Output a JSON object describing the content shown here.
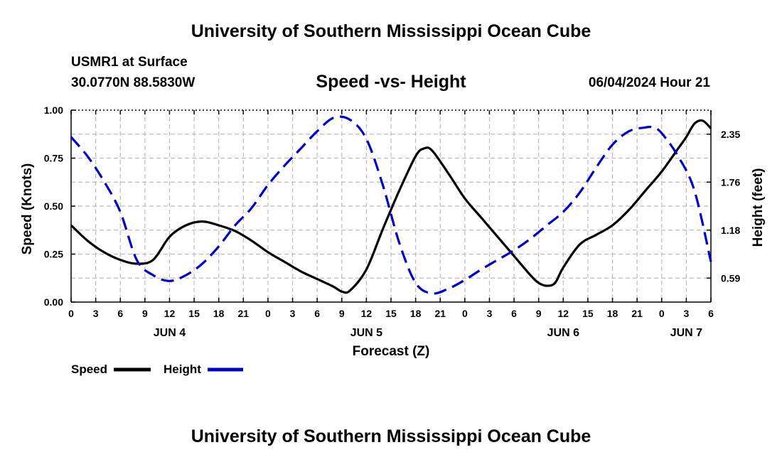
{
  "header": {
    "title": "University of Southern Mississippi Ocean Cube",
    "station": "USMR1 at Surface",
    "coords": "30.0770N  88.5830W",
    "subtitle": "Speed -vs- Height",
    "datetime": "06/04/2024 Hour 21"
  },
  "footer": {
    "title": "University of Southern Mississippi Ocean Cube"
  },
  "colors": {
    "speed": "#000000",
    "height": "#0000cc",
    "grid": "#bbbbbb"
  },
  "chart_data": {
    "type": "line",
    "title": "Speed -vs- Height",
    "xlabel": "Forecast (Z)",
    "ylabel": "Speed (Knots)",
    "y2label": "Height (feet)",
    "xlim": [
      0,
      78
    ],
    "ylim": [
      0,
      1
    ],
    "y2ticks": [
      0.59,
      1.18,
      1.76,
      2.35
    ],
    "y2ticks_norm": [
      0.125,
      0.375,
      0.625,
      0.875
    ],
    "x_ticks": [
      0,
      3,
      6,
      9,
      12,
      15,
      18,
      21,
      24,
      27,
      30,
      33,
      36,
      39,
      42,
      45,
      48,
      51,
      54,
      57,
      60,
      63,
      66,
      69,
      72,
      75,
      78
    ],
    "x_tick_labels": [
      "0",
      "3",
      "6",
      "9",
      "12",
      "15",
      "18",
      "21",
      "0",
      "3",
      "6",
      "9",
      "12",
      "15",
      "18",
      "21",
      "0",
      "3",
      "6",
      "9",
      "12",
      "15",
      "18",
      "21",
      "0",
      "3",
      "6"
    ],
    "y_ticks": [
      0,
      0.25,
      0.5,
      0.75,
      1.0
    ],
    "y_tick_labels": [
      "0.00",
      "0.25",
      "0.50",
      "0.75",
      "1.00"
    ],
    "day_labels": [
      {
        "x": 12,
        "label": "JUN 4"
      },
      {
        "x": 36,
        "label": "JUN 5"
      },
      {
        "x": 60,
        "label": "JUN 6"
      },
      {
        "x": 75,
        "label": "JUN 7"
      }
    ],
    "legend": {
      "speed_label": "Speed",
      "height_label": "Height",
      "position": "bottom-left"
    },
    "series": [
      {
        "name": "Speed",
        "axis": "left",
        "x": [
          0,
          2,
          4,
          6,
          8,
          10,
          12,
          14,
          16,
          18,
          20,
          22,
          24,
          26,
          28,
          30,
          32,
          33,
          34,
          36,
          38,
          40,
          42,
          43,
          44,
          46,
          48,
          50,
          52,
          54,
          56,
          57,
          58,
          59,
          60,
          62,
          64,
          66,
          68,
          70,
          72,
          74,
          75,
          76,
          77,
          78
        ],
        "values": [
          0.4,
          0.32,
          0.26,
          0.22,
          0.2,
          0.22,
          0.34,
          0.4,
          0.42,
          0.4,
          0.37,
          0.32,
          0.26,
          0.21,
          0.16,
          0.12,
          0.08,
          0.055,
          0.06,
          0.17,
          0.38,
          0.58,
          0.76,
          0.8,
          0.79,
          0.67,
          0.54,
          0.44,
          0.34,
          0.24,
          0.14,
          0.1,
          0.085,
          0.1,
          0.18,
          0.3,
          0.35,
          0.4,
          0.48,
          0.58,
          0.68,
          0.8,
          0.86,
          0.93,
          0.945,
          0.905
        ]
      },
      {
        "name": "Height",
        "axis": "right",
        "x": [
          0,
          2,
          4,
          6,
          8,
          10,
          12,
          14,
          16,
          18,
          20,
          22,
          24,
          26,
          28,
          30,
          32,
          34,
          36,
          38,
          40,
          42,
          44,
          46,
          48,
          50,
          52,
          54,
          56,
          58,
          60,
          62,
          64,
          66,
          68,
          70,
          71,
          72,
          74,
          76,
          78
        ],
        "values": [
          2.38,
          2.16,
          1.86,
          1.48,
          0.99,
          0.68,
          0.6,
          0.66,
          0.82,
          1.04,
          1.28,
          1.52,
          1.76,
          1.99,
          2.2,
          2.4,
          2.57,
          2.59,
          2.4,
          1.8,
          1.06,
          0.62,
          0.46,
          0.51,
          0.62,
          0.74,
          0.87,
          0.99,
          1.12,
          1.28,
          1.46,
          1.7,
          2.0,
          2.3,
          2.46,
          2.52,
          2.5,
          2.4,
          2.12,
          1.62,
          0.88
        ],
        "values_norm": [
          0.86,
          0.76,
          0.63,
          0.47,
          0.22,
          0.14,
          0.11,
          0.14,
          0.2,
          0.29,
          0.4,
          0.49,
          0.61,
          0.71,
          0.8,
          0.89,
          0.96,
          0.95,
          0.85,
          0.61,
          0.31,
          0.1,
          0.045,
          0.07,
          0.115,
          0.17,
          0.22,
          0.27,
          0.33,
          0.4,
          0.47,
          0.57,
          0.7,
          0.82,
          0.89,
          0.91,
          0.91,
          0.88,
          0.76,
          0.58,
          0.21
        ]
      }
    ]
  }
}
